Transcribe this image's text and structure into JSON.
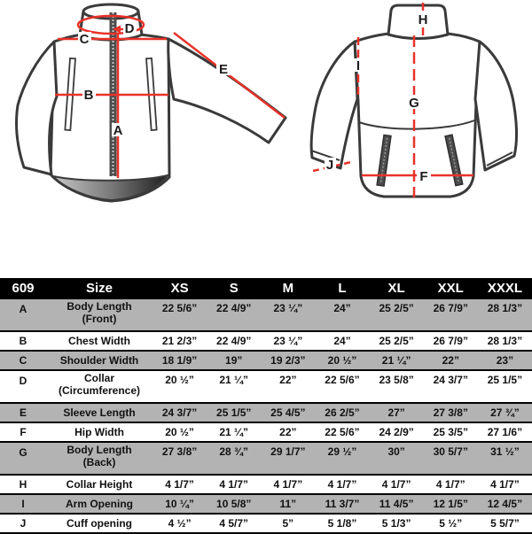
{
  "colors": {
    "accent_red": "#e8332a",
    "row_shaded_gray": "#b3b3b3",
    "header_bg": "#000000",
    "header_text": "#ffffff",
    "jacket_outline": "#3a3a3a"
  },
  "diagram": {
    "front": {
      "labels": {
        "A": "A",
        "B": "B",
        "C": "C",
        "D": "D",
        "E": "E"
      }
    },
    "back": {
      "labels": {
        "F": "F",
        "G": "G",
        "H": "H",
        "I": "I",
        "J": "J"
      }
    }
  },
  "table": {
    "model": "609",
    "size_header": "Size",
    "sizes": [
      "XS",
      "S",
      "M",
      "L",
      "XL",
      "XXL",
      "XXXL"
    ],
    "rows": [
      {
        "letter": "A",
        "name": "Body Length\n(Front)",
        "shaded": true,
        "values": [
          "22 5/6”",
          "22 4/9”",
          "23 ¼”",
          "24”",
          "25 2/5”",
          "26 7/9”",
          "28 1/3”"
        ]
      },
      {
        "letter": "B",
        "name": "Chest Width",
        "shaded": false,
        "values": [
          "21 2/3”",
          "22 4/9”",
          "23 ¼”",
          "24”",
          "25 2/5”",
          "26 7/9”",
          "28 1/3”"
        ]
      },
      {
        "letter": "C",
        "name": "Shoulder Width",
        "shaded": true,
        "values": [
          "18 1/9”",
          "19”",
          "19 2/3”",
          "20 ½”",
          "21 ¼”",
          "22”",
          "23”"
        ]
      },
      {
        "letter": "D",
        "name": "Collar\n(Circumference)",
        "shaded": false,
        "values": [
          "20 ½”",
          "21 ¼”",
          "22”",
          "22 5/6”",
          "23 5/8”",
          "24 3/7”",
          "25 1/5”"
        ]
      },
      {
        "letter": "E",
        "name": "Sleeve Length",
        "shaded": true,
        "values": [
          "24 3/7”",
          "25 1/5”",
          "25 4/5”",
          "26 2/5”",
          "27”",
          "27 3/8”",
          "27 ¾”"
        ]
      },
      {
        "letter": "F",
        "name": "Hip Width",
        "shaded": false,
        "values": [
          "20 ½”",
          "21 ¼”",
          "22”",
          "22 5/6”",
          "24 2/9”",
          "25 3/5”",
          "27 1/6”"
        ]
      },
      {
        "letter": "G",
        "name": "Body Length\n(Back)",
        "shaded": true,
        "values": [
          "27 3/8”",
          "28 ¾”",
          "29 1/7”",
          "29 ½”",
          "30”",
          "30 5/7”",
          "31 ½”"
        ]
      },
      {
        "letter": "H",
        "name": "Collar Height",
        "shaded": false,
        "values": [
          "4 1/7”",
          "4 1/7”",
          "4 1/7”",
          "4 1/7”",
          "4 1/7”",
          "4 1/7”",
          "4 1/7”"
        ]
      },
      {
        "letter": "I",
        "name": "Arm Opening",
        "shaded": true,
        "values": [
          "10 ¼”",
          "10 5/8”",
          "11”",
          "11 3/7”",
          "11 4/5”",
          "12 1/5”",
          "12 4/5”"
        ]
      },
      {
        "letter": "J",
        "name": "Cuff opening",
        "shaded": false,
        "values": [
          "4 ½”",
          "4 5/7”",
          "5”",
          "5 1/8”",
          "5 1/3”",
          "5 ½”",
          "5 5/7”"
        ]
      }
    ]
  }
}
